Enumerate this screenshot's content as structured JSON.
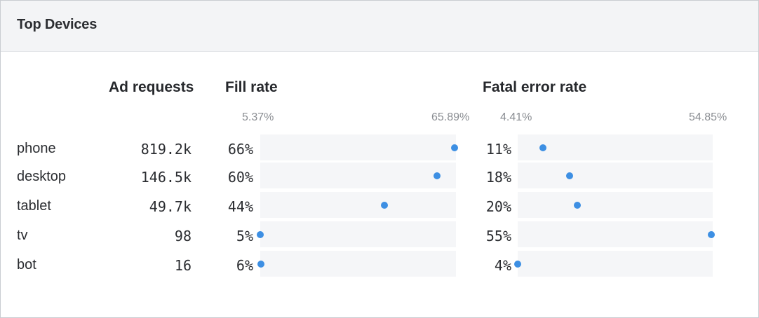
{
  "panel": {
    "title": "Top Devices"
  },
  "columns": {
    "requests": "Ad requests",
    "fill": "Fill rate",
    "fatal": "Fatal error rate"
  },
  "ranges": {
    "fill_min": "5.37%",
    "fill_max": "65.89%",
    "fatal_min": "4.41%",
    "fatal_max": "54.85%"
  },
  "scale": {
    "fill_min": 5.37,
    "fill_max": 65.89,
    "fatal_min": 4.41,
    "fatal_max": 54.85
  },
  "colors": {
    "dot": "#3d8fe3",
    "track": "#f5f6f8"
  },
  "rows": [
    {
      "device": "phone",
      "requests": "819.2k",
      "fill": "66%",
      "fill_value": 65.89,
      "fatal": "11%",
      "fatal_value": 11.0
    },
    {
      "device": "desktop",
      "requests": "146.5k",
      "fill": "60%",
      "fill_value": 60.5,
      "fatal": "18%",
      "fatal_value": 18.0
    },
    {
      "device": "tablet",
      "requests": "49.7k",
      "fill": "44%",
      "fill_value": 44.0,
      "fatal": "20%",
      "fatal_value": 20.0
    },
    {
      "device": "tv",
      "requests": "98",
      "fill": "5%",
      "fill_value": 5.37,
      "fatal": "55%",
      "fatal_value": 54.85
    },
    {
      "device": "bot",
      "requests": "16",
      "fill": "6%",
      "fill_value": 5.6,
      "fatal": "4%",
      "fatal_value": 4.41
    }
  ]
}
